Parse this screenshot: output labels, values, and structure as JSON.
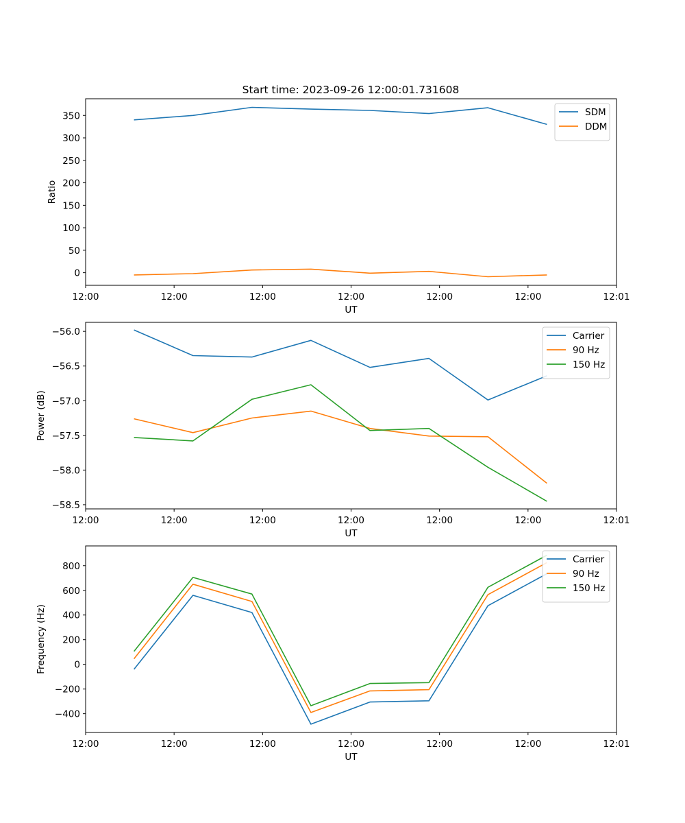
{
  "figure_title": "Start time: 2023-09-26 12:00:01.731608",
  "chart_data": [
    {
      "type": "line",
      "title": "Start time: 2023-09-26 12:00:01.731608",
      "xlabel": "UT",
      "ylabel": "Ratio",
      "x_index": [
        1,
        2,
        3,
        4,
        5,
        6,
        7,
        8
      ],
      "x_range": [
        0.18,
        9.18
      ],
      "x_ticks": [
        0.18,
        1.68,
        3.18,
        4.68,
        6.18,
        7.68,
        9.18
      ],
      "x_tick_labels": [
        "12:00",
        "12:00",
        "12:00",
        "12:00",
        "12:00",
        "12:00",
        "12:01"
      ],
      "ylim": [
        -28,
        387
      ],
      "y_ticks": [
        0,
        50,
        100,
        150,
        200,
        250,
        300,
        350
      ],
      "legend_position": "top-right",
      "series": [
        {
          "name": "SDM",
          "color": "#1f77b4",
          "values": [
            340,
            350,
            368,
            364,
            361,
            354,
            367,
            330
          ]
        },
        {
          "name": "DDM",
          "color": "#ff7f0e",
          "values": [
            -5,
            -2,
            6,
            8,
            -1,
            3,
            -9,
            -5
          ]
        }
      ]
    },
    {
      "type": "line",
      "title": "",
      "xlabel": "UT",
      "ylabel": "Power (dB)",
      "x_index": [
        1,
        2,
        3,
        4,
        5,
        6,
        7,
        8
      ],
      "x_range": [
        0.18,
        9.18
      ],
      "x_ticks": [
        0.18,
        1.68,
        3.18,
        4.68,
        6.18,
        7.68,
        9.18
      ],
      "x_tick_labels": [
        "12:00",
        "12:00",
        "12:00",
        "12:00",
        "12:00",
        "12:00",
        "12:01"
      ],
      "ylim": [
        -58.56,
        -55.87
      ],
      "y_ticks": [
        -58.5,
        -58.0,
        -57.5,
        -57.0,
        -56.5,
        -56.0
      ],
      "y_tick_labels": [
        "−58.5",
        "−58.0",
        "−57.5",
        "−57.0",
        "−56.5",
        "−56.0"
      ],
      "legend_position": "top-right",
      "series": [
        {
          "name": "Carrier",
          "color": "#1f77b4",
          "values": [
            -55.98,
            -56.35,
            -56.37,
            -56.13,
            -56.52,
            -56.39,
            -56.99,
            -56.64
          ]
        },
        {
          "name": "90 Hz",
          "color": "#ff7f0e",
          "values": [
            -57.26,
            -57.46,
            -57.25,
            -57.15,
            -57.4,
            -57.51,
            -57.52,
            -58.19
          ]
        },
        {
          "name": "150 Hz",
          "color": "#2ca02c",
          "values": [
            -57.53,
            -57.58,
            -56.98,
            -56.77,
            -57.43,
            -57.4,
            -57.96,
            -58.45
          ]
        }
      ]
    },
    {
      "type": "line",
      "title": "",
      "xlabel": "UT",
      "ylabel": "Frequency (Hz)",
      "x_index": [
        1,
        2,
        3,
        4,
        5,
        6,
        7,
        8
      ],
      "x_range": [
        0.18,
        9.18
      ],
      "x_ticks": [
        0.18,
        1.68,
        3.18,
        4.68,
        6.18,
        7.68,
        9.18
      ],
      "x_tick_labels": [
        "12:00",
        "12:00",
        "12:00",
        "12:00",
        "12:00",
        "12:00",
        "12:01"
      ],
      "ylim": [
        -552,
        960
      ],
      "y_ticks": [
        -400,
        -200,
        0,
        200,
        400,
        600,
        800
      ],
      "y_tick_labels": [
        "−400",
        "−200",
        "0",
        "200",
        "400",
        "600",
        "800"
      ],
      "legend_position": "top-right",
      "series": [
        {
          "name": "Carrier",
          "color": "#1f77b4",
          "values": [
            -40,
            560,
            420,
            -485,
            -305,
            -295,
            475,
            735
          ]
        },
        {
          "name": "90 Hz",
          "color": "#ff7f0e",
          "values": [
            45,
            650,
            510,
            -390,
            -215,
            -205,
            565,
            825
          ]
        },
        {
          "name": "150 Hz",
          "color": "#2ca02c",
          "values": [
            105,
            705,
            570,
            -335,
            -155,
            -148,
            625,
            885
          ]
        }
      ]
    }
  ]
}
